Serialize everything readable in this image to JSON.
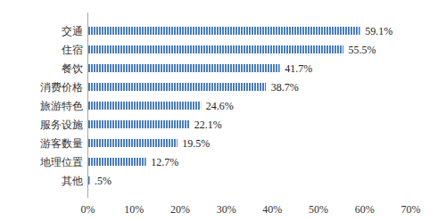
{
  "chart_data": {
    "type": "bar",
    "orientation": "horizontal",
    "categories": [
      "交通",
      "住宿",
      "餐饮",
      "消费价格",
      "旅游特色",
      "服务设施",
      "游客数量",
      "地理位置",
      "其他"
    ],
    "values": [
      59.1,
      55.5,
      41.7,
      38.7,
      24.6,
      22.1,
      19.5,
      12.7,
      0.5
    ],
    "value_labels": [
      "59.1%",
      "55.5%",
      "41.7%",
      "38.7%",
      "24.6%",
      "22.1%",
      "19.5%",
      "12.7%",
      ".5%"
    ],
    "data_labels": true,
    "color": "#4a7ebb",
    "grid": false,
    "xlim": [
      0,
      70
    ],
    "xticks": [
      {
        "value": 0,
        "label": "0%"
      },
      {
        "value": 10,
        "label": "10%"
      },
      {
        "value": 20,
        "label": "20%"
      },
      {
        "value": 30,
        "label": "30%"
      },
      {
        "value": 40,
        "label": "40%"
      },
      {
        "value": 50,
        "label": "50%"
      },
      {
        "value": 60,
        "label": "60%"
      },
      {
        "value": 70,
        "label": "70%"
      }
    ]
  }
}
